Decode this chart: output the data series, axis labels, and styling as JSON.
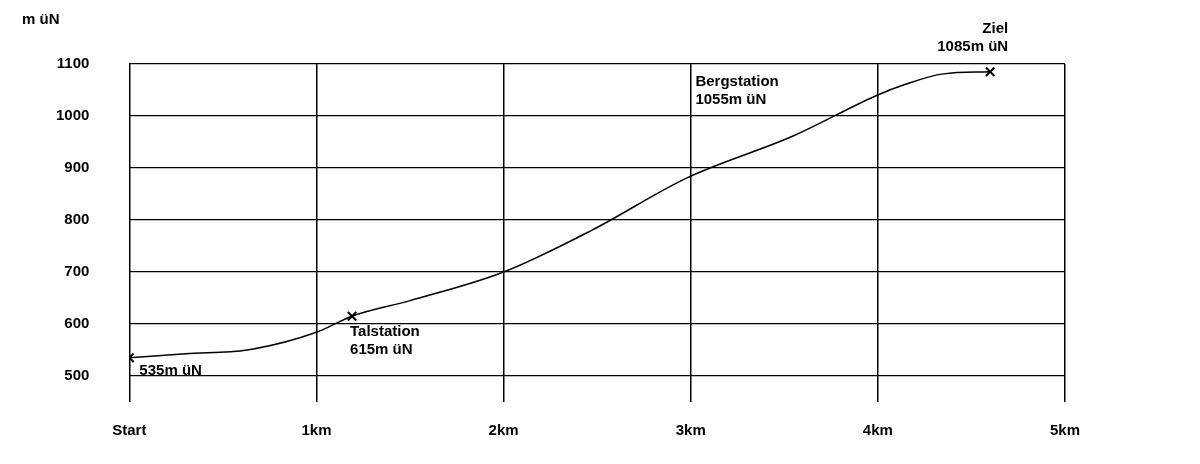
{
  "chart_data": {
    "type": "line",
    "ylabel": "m üN",
    "xlim": [
      0,
      5
    ],
    "ylim": [
      450,
      1100
    ],
    "xticks": [
      {
        "value": 0,
        "label": "Start"
      },
      {
        "value": 1,
        "label": "1km"
      },
      {
        "value": 2,
        "label": "2km"
      },
      {
        "value": 3,
        "label": "3km"
      },
      {
        "value": 4,
        "label": "4km"
      },
      {
        "value": 5,
        "label": "5km"
      }
    ],
    "yticks": [
      500,
      600,
      700,
      800,
      900,
      1000,
      1100
    ],
    "grid": true,
    "legend": false,
    "series": [
      {
        "marker": "none",
        "color": "#000000",
        "x": [
          0,
          0.3,
          0.63,
          1,
          1.19,
          1.5,
          2,
          2.47,
          2.98,
          3.55,
          3.99,
          4.14,
          4.35,
          4.6
        ],
        "values": [
          535,
          543,
          550,
          584,
          615,
          645,
          700,
          780,
          881,
          962,
          1039,
          1060,
          1081,
          1085
        ]
      },
      {
        "type": "scatter",
        "marker": "cross",
        "color": "#000000",
        "x": [
          0,
          1.19,
          4.6
        ],
        "values": [
          535,
          615,
          1085
        ]
      }
    ],
    "annotations": [
      {
        "text": "535m üN",
        "x": 0,
        "y": 535
      },
      {
        "text": "Talstation\n615m üN",
        "x": 1.19,
        "y": 615
      },
      "Bergstation\n1055m üN",
      {
        "text": "Ziel\n1085m üN",
        "x": 4.6,
        "y": 1085
      }
    ]
  }
}
